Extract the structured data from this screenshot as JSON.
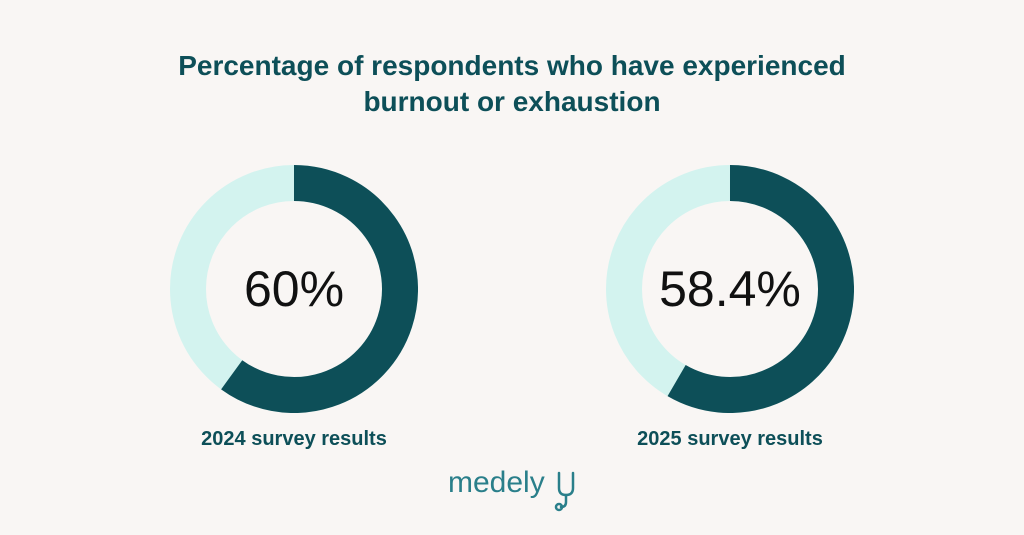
{
  "title": {
    "line1": "Percentage of respondents who have experienced",
    "line2": "burnout or exhaustion"
  },
  "colors": {
    "background": "#f9f6f4",
    "filled": "#0d4f58",
    "track": "#d3f3ef",
    "text": "#0d4f58",
    "value_text": "#111111"
  },
  "chart_data": [
    {
      "type": "pie",
      "variant": "donut",
      "value": 60,
      "max": 100,
      "center_label": "60%",
      "caption": "2024 survey results"
    },
    {
      "type": "pie",
      "variant": "donut",
      "value": 58.4,
      "max": 100,
      "center_label": "58.4%",
      "caption": "2025 survey results"
    }
  ],
  "logo": {
    "text": "medely",
    "icon": "stethoscope-y-icon"
  }
}
